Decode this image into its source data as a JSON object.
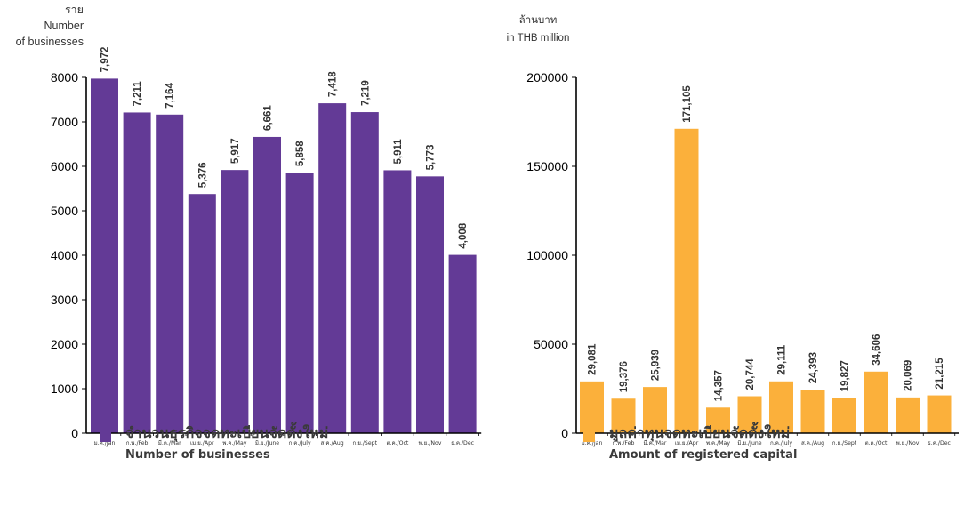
{
  "chart_data": [
    {
      "type": "bar",
      "unit_label_th": "ราย",
      "unit_label_en": [
        "Number",
        "of businesses"
      ],
      "categories": [
        "ม.ค./Jan",
        "ก.พ./Feb",
        "มี.ค./Mar",
        "เม.ย./Apr",
        "พ.ค./May",
        "มิ.ย./June",
        "ก.ค./July",
        "ส.ค./Aug",
        "ก.ย./Sept",
        "ต.ค./Oct",
        "พ.ย./Nov",
        "ธ.ค./Dec"
      ],
      "values": [
        7972,
        7211,
        7164,
        5376,
        5917,
        6661,
        5858,
        7418,
        7219,
        5911,
        5773,
        4008
      ],
      "data_labels": [
        "7,972",
        "7,211",
        "7,164",
        "5,376",
        "5,917",
        "6,661",
        "5,858",
        "7,418",
        "7,219",
        "5,911",
        "5,773",
        "4,008"
      ],
      "yticks": [
        "0",
        "1000",
        "2000",
        "3000",
        "4000",
        "5000",
        "6000",
        "7000",
        "8000"
      ],
      "ylim": [
        0,
        8000
      ],
      "color": "#633a96",
      "legend_th": "จำนวนธุรกิจจดทะเบียนจัดตั้งใหม่",
      "legend_en": "Number of businesses"
    },
    {
      "type": "bar",
      "unit_label_th": "ล้านบาท",
      "unit_label_en": [
        "in THB million"
      ],
      "categories": [
        "ม.ค./Jan",
        "ก.พ./Feb",
        "มี.ค./Mar",
        "เม.ย./Apr",
        "พ.ค./May",
        "มิ.ย./June",
        "ก.ค./July",
        "ส.ค./Aug",
        "ก.ย./Sept",
        "ต.ค./Oct",
        "พ.ย./Nov",
        "ธ.ค./Dec"
      ],
      "values": [
        29081,
        19376,
        25939,
        171105,
        14357,
        20744,
        29111,
        24393,
        19827,
        34606,
        20069,
        21215
      ],
      "data_labels": [
        "29,081",
        "19,376",
        "25,939",
        "171,105",
        "14,357",
        "20,744",
        "29,111",
        "24,393",
        "19,827",
        "34,606",
        "20,069",
        "21,215"
      ],
      "yticks": [
        "0",
        "50000",
        "100000",
        "150000",
        "200000"
      ],
      "ylim": [
        0,
        200000
      ],
      "color": "#fbb03b",
      "legend_th": "มูลค่าทุนจดทะเบียนจัดตั้งใหม่",
      "legend_en": "Amount of registered capital"
    }
  ]
}
